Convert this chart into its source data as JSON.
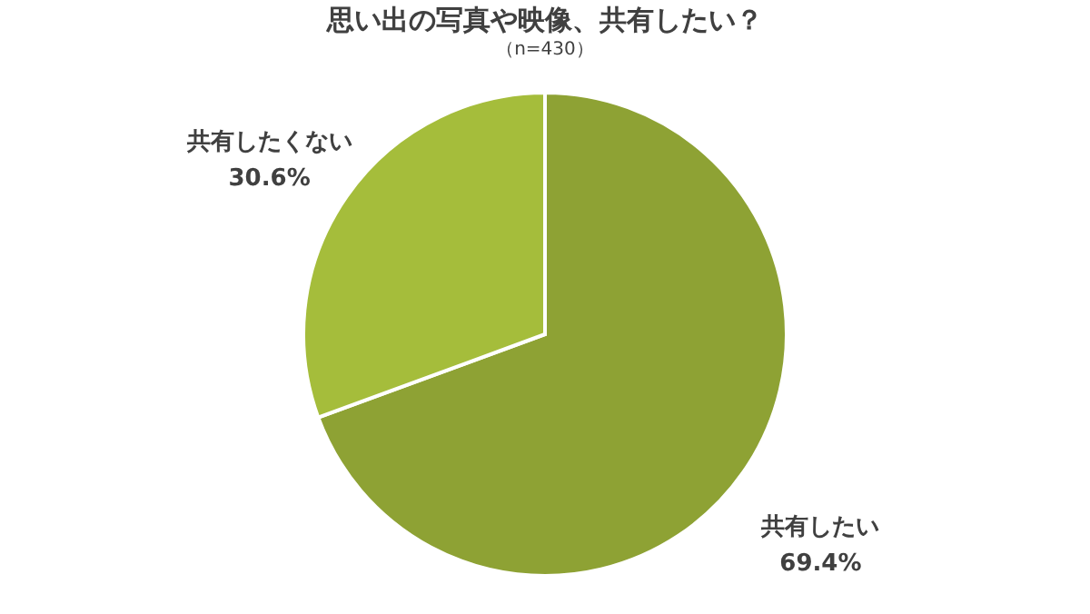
{
  "chart_data": {
    "type": "pie",
    "title": "思い出の写真や映像、共有したい？",
    "subtitle": "（n=430）",
    "categories": [
      "共有したい",
      "共有したくない"
    ],
    "values": [
      69.4,
      30.6
    ],
    "colors": [
      "#8ea234",
      "#a5bd3b"
    ],
    "value_labels": [
      "69.4%",
      "30.6%"
    ]
  }
}
